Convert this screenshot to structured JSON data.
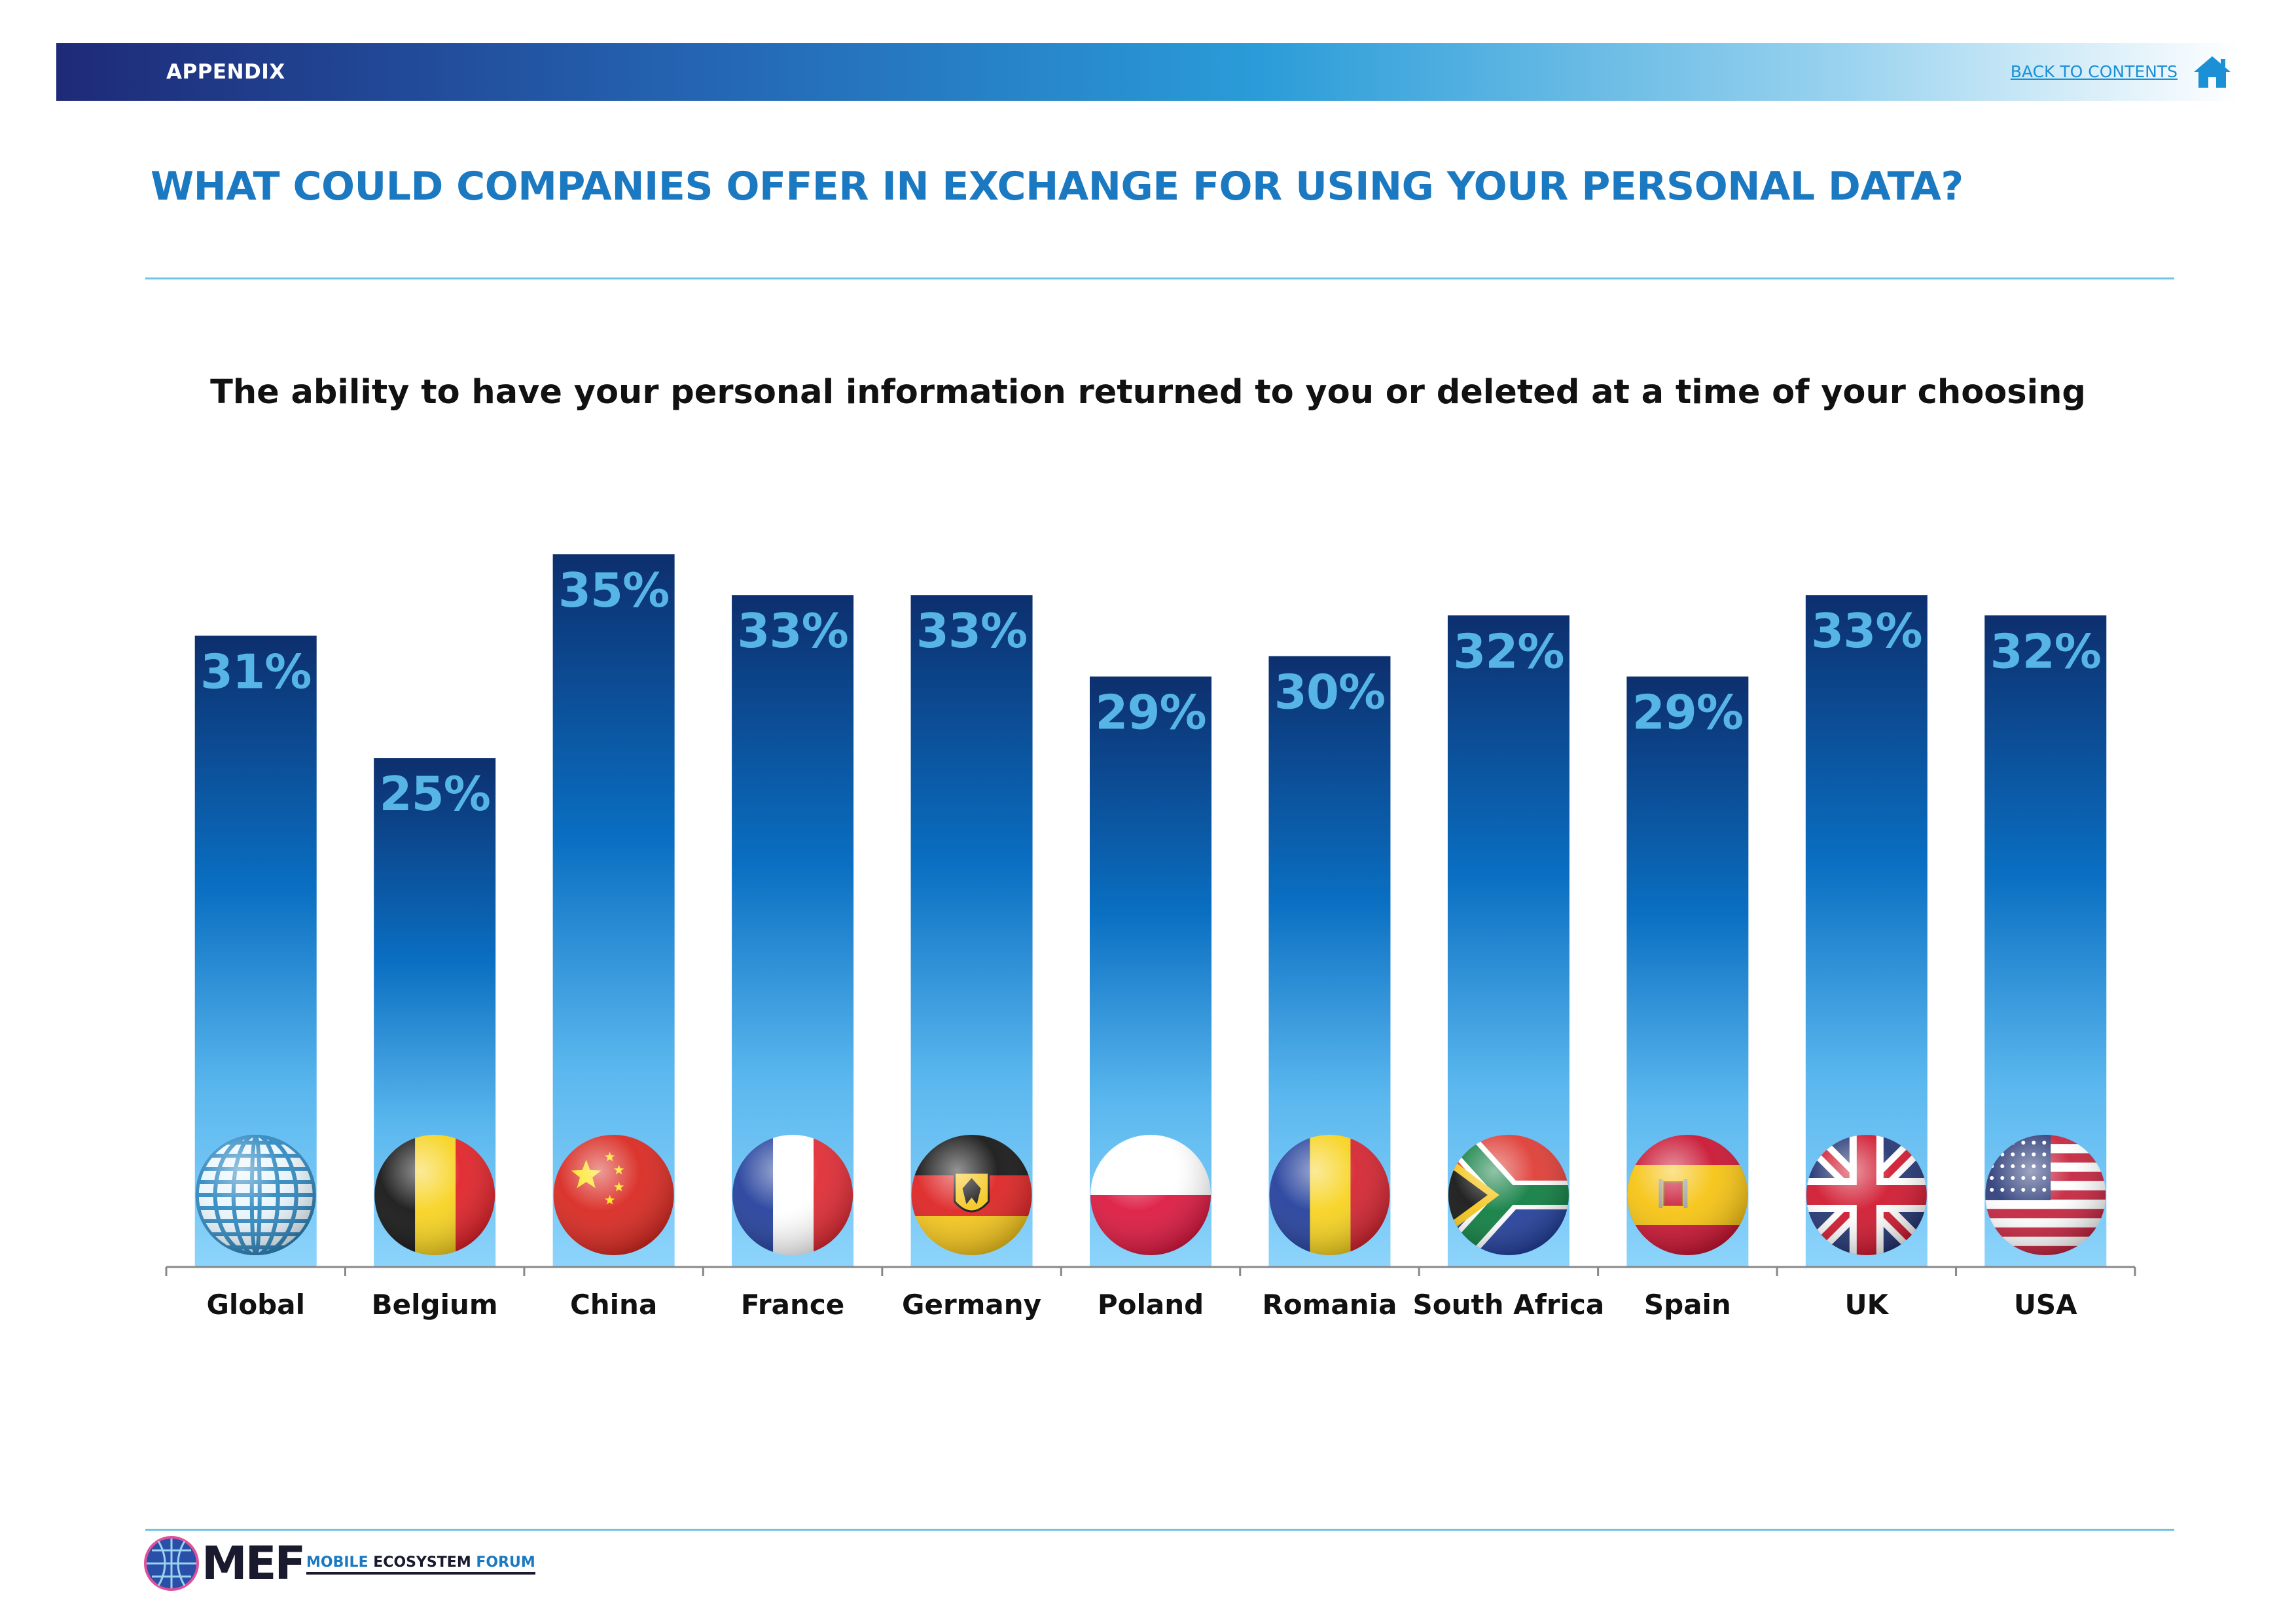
{
  "header": {
    "section_label": "APPENDIX",
    "back_link": "BACK TO CONTENTS",
    "home_icon": "home-icon",
    "colors": {
      "banner_start": "#1e2a78",
      "banner_end": "#ffffff",
      "link": "#1b90d4"
    }
  },
  "page": {
    "title": "WHAT COULD COMPANIES OFFER IN EXCHANGE FOR USING YOUR PERSONAL DATA?",
    "title_color": "#1b79c2"
  },
  "chart_data": {
    "type": "bar",
    "title": "The ability to have your personal information returned to you or deleted at a time of your choosing",
    "categories": [
      "Global",
      "Belgium",
      "China",
      "France",
      "Germany",
      "Poland",
      "Romania",
      "South Africa",
      "Spain",
      "UK",
      "USA"
    ],
    "values": [
      31,
      25,
      35,
      33,
      33,
      29,
      30,
      32,
      29,
      33,
      32
    ],
    "value_labels": [
      "31%",
      "25%",
      "35%",
      "33%",
      "33%",
      "29%",
      "30%",
      "32%",
      "29%",
      "33%",
      "32%"
    ],
    "icons": [
      "globe-icon",
      "belgium-flag-icon",
      "china-flag-icon",
      "france-flag-icon",
      "germany-flag-icon",
      "poland-flag-icon",
      "romania-flag-icon",
      "south-africa-flag-icon",
      "spain-flag-icon",
      "uk-flag-icon",
      "usa-flag-icon"
    ],
    "ylim": [
      0,
      40
    ],
    "xlabel": "",
    "ylabel": "",
    "grid": false,
    "colors": {
      "bar_top": "#0d2f6e",
      "bar_mid": "#0a6fc2",
      "bar_bottom": "#8dd4fb",
      "label": "#57b5e6"
    }
  },
  "footer": {
    "logo_text": "MEF",
    "logo_sub_1": "MOBILE",
    "logo_sub_2": "ECOSYSTEM",
    "logo_sub_3": "FORUM"
  }
}
